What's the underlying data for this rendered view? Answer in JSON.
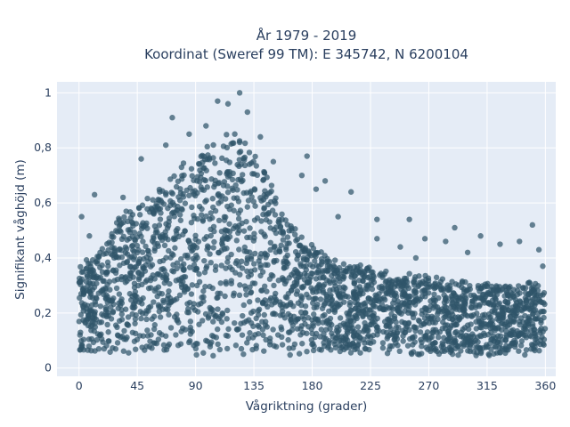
{
  "chart_data": {
    "type": "scatter",
    "title_lines": [
      "År 1979 - 2019",
      "Koordinat (Sweref 99 TM): E 345742, N 6200104"
    ],
    "xlabel": "Vågriktning (grader)",
    "ylabel": "Signifikant våghöjd (m)",
    "xlim": [
      -17,
      368
    ],
    "ylim": [
      -0.03,
      1.04
    ],
    "x_ticks": [
      0,
      45,
      90,
      135,
      180,
      225,
      270,
      315,
      360
    ],
    "x_tick_labels": [
      "0",
      "45",
      "90",
      "135",
      "180",
      "225",
      "270",
      "315",
      "360"
    ],
    "y_ticks": [
      0,
      0.2,
      0.4,
      0.6,
      0.8,
      1
    ],
    "y_tick_labels": [
      "0",
      "0,2",
      "0,4",
      "0,6",
      "0,8",
      "1"
    ],
    "grid": true,
    "legend": "none",
    "marker_color": "#2f5569",
    "plot_background": "#e5ecf6",
    "envelope": {
      "description_points": [
        {
          "x": 0,
          "y": 0.35
        },
        {
          "x": 10,
          "y": 0.4
        },
        {
          "x": 20,
          "y": 0.45
        },
        {
          "x": 30,
          "y": 0.52
        },
        {
          "x": 45,
          "y": 0.58
        },
        {
          "x": 60,
          "y": 0.63
        },
        {
          "x": 75,
          "y": 0.69
        },
        {
          "x": 90,
          "y": 0.76
        },
        {
          "x": 105,
          "y": 0.8
        },
        {
          "x": 120,
          "y": 0.82
        },
        {
          "x": 130,
          "y": 0.79
        },
        {
          "x": 140,
          "y": 0.74
        },
        {
          "x": 150,
          "y": 0.62
        },
        {
          "x": 160,
          "y": 0.55
        },
        {
          "x": 170,
          "y": 0.48
        },
        {
          "x": 180,
          "y": 0.43
        },
        {
          "x": 200,
          "y": 0.38
        },
        {
          "x": 225,
          "y": 0.35
        },
        {
          "x": 270,
          "y": 0.32
        },
        {
          "x": 315,
          "y": 0.3
        },
        {
          "x": 360,
          "y": 0.3
        }
      ]
    },
    "outliers": [
      {
        "x": 124,
        "y": 1.0
      },
      {
        "x": 107,
        "y": 0.97
      },
      {
        "x": 115,
        "y": 0.96
      },
      {
        "x": 130,
        "y": 0.93
      },
      {
        "x": 72,
        "y": 0.91
      },
      {
        "x": 98,
        "y": 0.88
      },
      {
        "x": 85,
        "y": 0.85
      },
      {
        "x": 140,
        "y": 0.84
      },
      {
        "x": 67,
        "y": 0.81
      },
      {
        "x": 150,
        "y": 0.75
      },
      {
        "x": 176,
        "y": 0.77
      },
      {
        "x": 48,
        "y": 0.76
      },
      {
        "x": 172,
        "y": 0.7
      },
      {
        "x": 190,
        "y": 0.68
      },
      {
        "x": 12,
        "y": 0.63
      },
      {
        "x": 210,
        "y": 0.64
      },
      {
        "x": 183,
        "y": 0.65
      },
      {
        "x": 34,
        "y": 0.62
      },
      {
        "x": 2,
        "y": 0.55
      },
      {
        "x": 200,
        "y": 0.55
      },
      {
        "x": 230,
        "y": 0.54
      },
      {
        "x": 255,
        "y": 0.54
      },
      {
        "x": 290,
        "y": 0.51
      },
      {
        "x": 350,
        "y": 0.52
      },
      {
        "x": 230,
        "y": 0.47
      },
      {
        "x": 267,
        "y": 0.47
      },
      {
        "x": 283,
        "y": 0.46
      },
      {
        "x": 310,
        "y": 0.48
      },
      {
        "x": 340,
        "y": 0.46
      },
      {
        "x": 355,
        "y": 0.43
      },
      {
        "x": 248,
        "y": 0.44
      },
      {
        "x": 325,
        "y": 0.45
      },
      {
        "x": 300,
        "y": 0.42
      },
      {
        "x": 8,
        "y": 0.48
      },
      {
        "x": 260,
        "y": 0.4
      },
      {
        "x": 358,
        "y": 0.37
      }
    ]
  }
}
